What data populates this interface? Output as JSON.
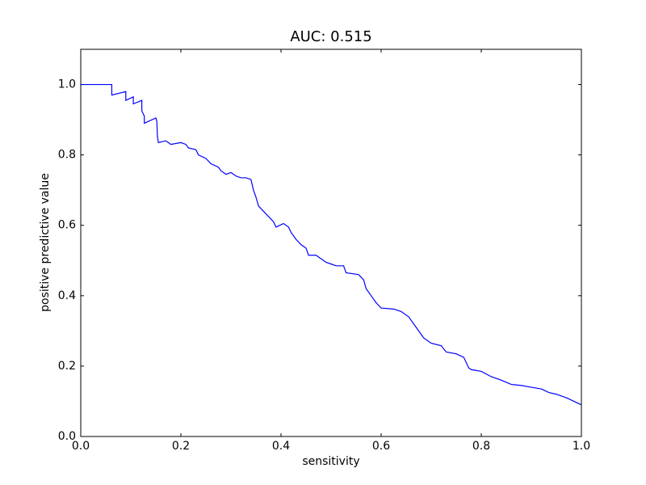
{
  "chart_data": {
    "type": "line",
    "title": "AUC: 0.515",
    "xlabel": "sensitivity",
    "ylabel": "positive predictive value",
    "xlim": [
      0,
      1
    ],
    "ylim": [
      0,
      1.1
    ],
    "xticks": [
      {
        "value": 0,
        "label": "0.0"
      },
      0.2,
      0.4,
      0.6,
      0.8,
      {
        "value": 1,
        "label": "1.0"
      }
    ],
    "yticks": [
      {
        "value": 0,
        "label": "0.0"
      },
      0.2,
      0.4,
      0.6,
      0.8,
      {
        "value": 1,
        "label": "1.0"
      }
    ],
    "series": [
      {
        "color": "#0000ff",
        "x": [
          0,
          0.062,
          0.062,
          0.09,
          0.09,
          0.105,
          0.105,
          0.122,
          0.122,
          0.127,
          0.127,
          0.15,
          0.152,
          0.153,
          0.155,
          0.17,
          0.18,
          0.2,
          0.21,
          0.215,
          0.23,
          0.235,
          0.25,
          0.26,
          0.275,
          0.28,
          0.29,
          0.3,
          0.31,
          0.32,
          0.33,
          0.34,
          0.345,
          0.35,
          0.355,
          0.365,
          0.375,
          0.385,
          0.39,
          0.405,
          0.415,
          0.42,
          0.43,
          0.44,
          0.45,
          0.455,
          0.47,
          0.48,
          0.49,
          0.5,
          0.51,
          0.525,
          0.53,
          0.555,
          0.565,
          0.57,
          0.58,
          0.59,
          0.6,
          0.625,
          0.64,
          0.655,
          0.665,
          0.675,
          0.685,
          0.7,
          0.72,
          0.73,
          0.75,
          0.765,
          0.775,
          0.78,
          0.8,
          0.82,
          0.84,
          0.86,
          0.88,
          0.9,
          0.92,
          0.935,
          0.95,
          0.97,
          1.0
        ],
        "values": [
          1.0,
          1.0,
          0.97,
          0.98,
          0.955,
          0.965,
          0.945,
          0.955,
          0.925,
          0.91,
          0.89,
          0.905,
          0.895,
          0.855,
          0.835,
          0.84,
          0.83,
          0.835,
          0.83,
          0.82,
          0.815,
          0.8,
          0.79,
          0.775,
          0.765,
          0.755,
          0.745,
          0.75,
          0.74,
          0.735,
          0.735,
          0.73,
          0.7,
          0.68,
          0.655,
          0.64,
          0.625,
          0.61,
          0.595,
          0.605,
          0.595,
          0.58,
          0.56,
          0.545,
          0.535,
          0.515,
          0.515,
          0.505,
          0.495,
          0.49,
          0.485,
          0.485,
          0.465,
          0.46,
          0.445,
          0.42,
          0.4,
          0.38,
          0.365,
          0.362,
          0.355,
          0.34,
          0.32,
          0.3,
          0.28,
          0.265,
          0.258,
          0.24,
          0.235,
          0.225,
          0.195,
          0.19,
          0.185,
          0.17,
          0.16,
          0.148,
          0.145,
          0.14,
          0.135,
          0.125,
          0.12,
          0.11,
          0.09
        ]
      }
    ]
  }
}
